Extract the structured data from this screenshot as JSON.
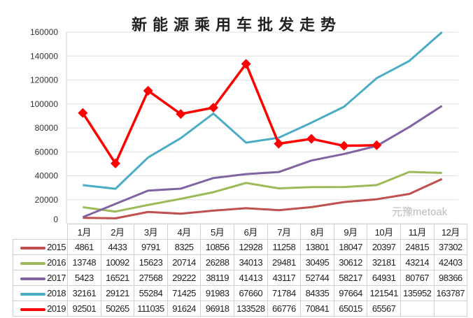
{
  "chart_data": {
    "type": "line",
    "title": "新能源乘用车批发走势",
    "categories": [
      "1月",
      "2月",
      "3月",
      "4月",
      "5月",
      "6月",
      "7月",
      "8月",
      "9月",
      "10月",
      "11月",
      "12月"
    ],
    "ylim": [
      0,
      160000
    ],
    "yticks": [
      0,
      20000,
      40000,
      60000,
      80000,
      100000,
      120000,
      140000,
      160000
    ],
    "grid": "horizontal",
    "legend": "bottom data table",
    "series": [
      {
        "name": "2015",
        "color": "#c0504d",
        "values": [
          4861,
          4433,
          9791,
          8325,
          10856,
          12928,
          11258,
          13801,
          18047,
          20397,
          24815,
          37302
        ]
      },
      {
        "name": "2016",
        "color": "#9bbb59",
        "values": [
          13748,
          10092,
          15623,
          20714,
          26288,
          34013,
          29481,
          30495,
          30612,
          32181,
          43214,
          42403
        ]
      },
      {
        "name": "2017",
        "color": "#8064a2",
        "values": [
          5423,
          16521,
          27568,
          29222,
          38119,
          41413,
          43117,
          52744,
          58217,
          64931,
          80767,
          98366
        ]
      },
      {
        "name": "2018",
        "color": "#4bacc6",
        "values": [
          32161,
          29121,
          55284,
          71425,
          91983,
          67660,
          71784,
          84335,
          97664,
          121541,
          135952,
          163787
        ]
      },
      {
        "name": "2019",
        "color": "#ff0000",
        "values": [
          92501,
          50265,
          111035,
          91624,
          96918,
          133528,
          66776,
          70841,
          65015,
          65567,
          null,
          null
        ]
      }
    ]
  },
  "watermark": "元豫metoak"
}
